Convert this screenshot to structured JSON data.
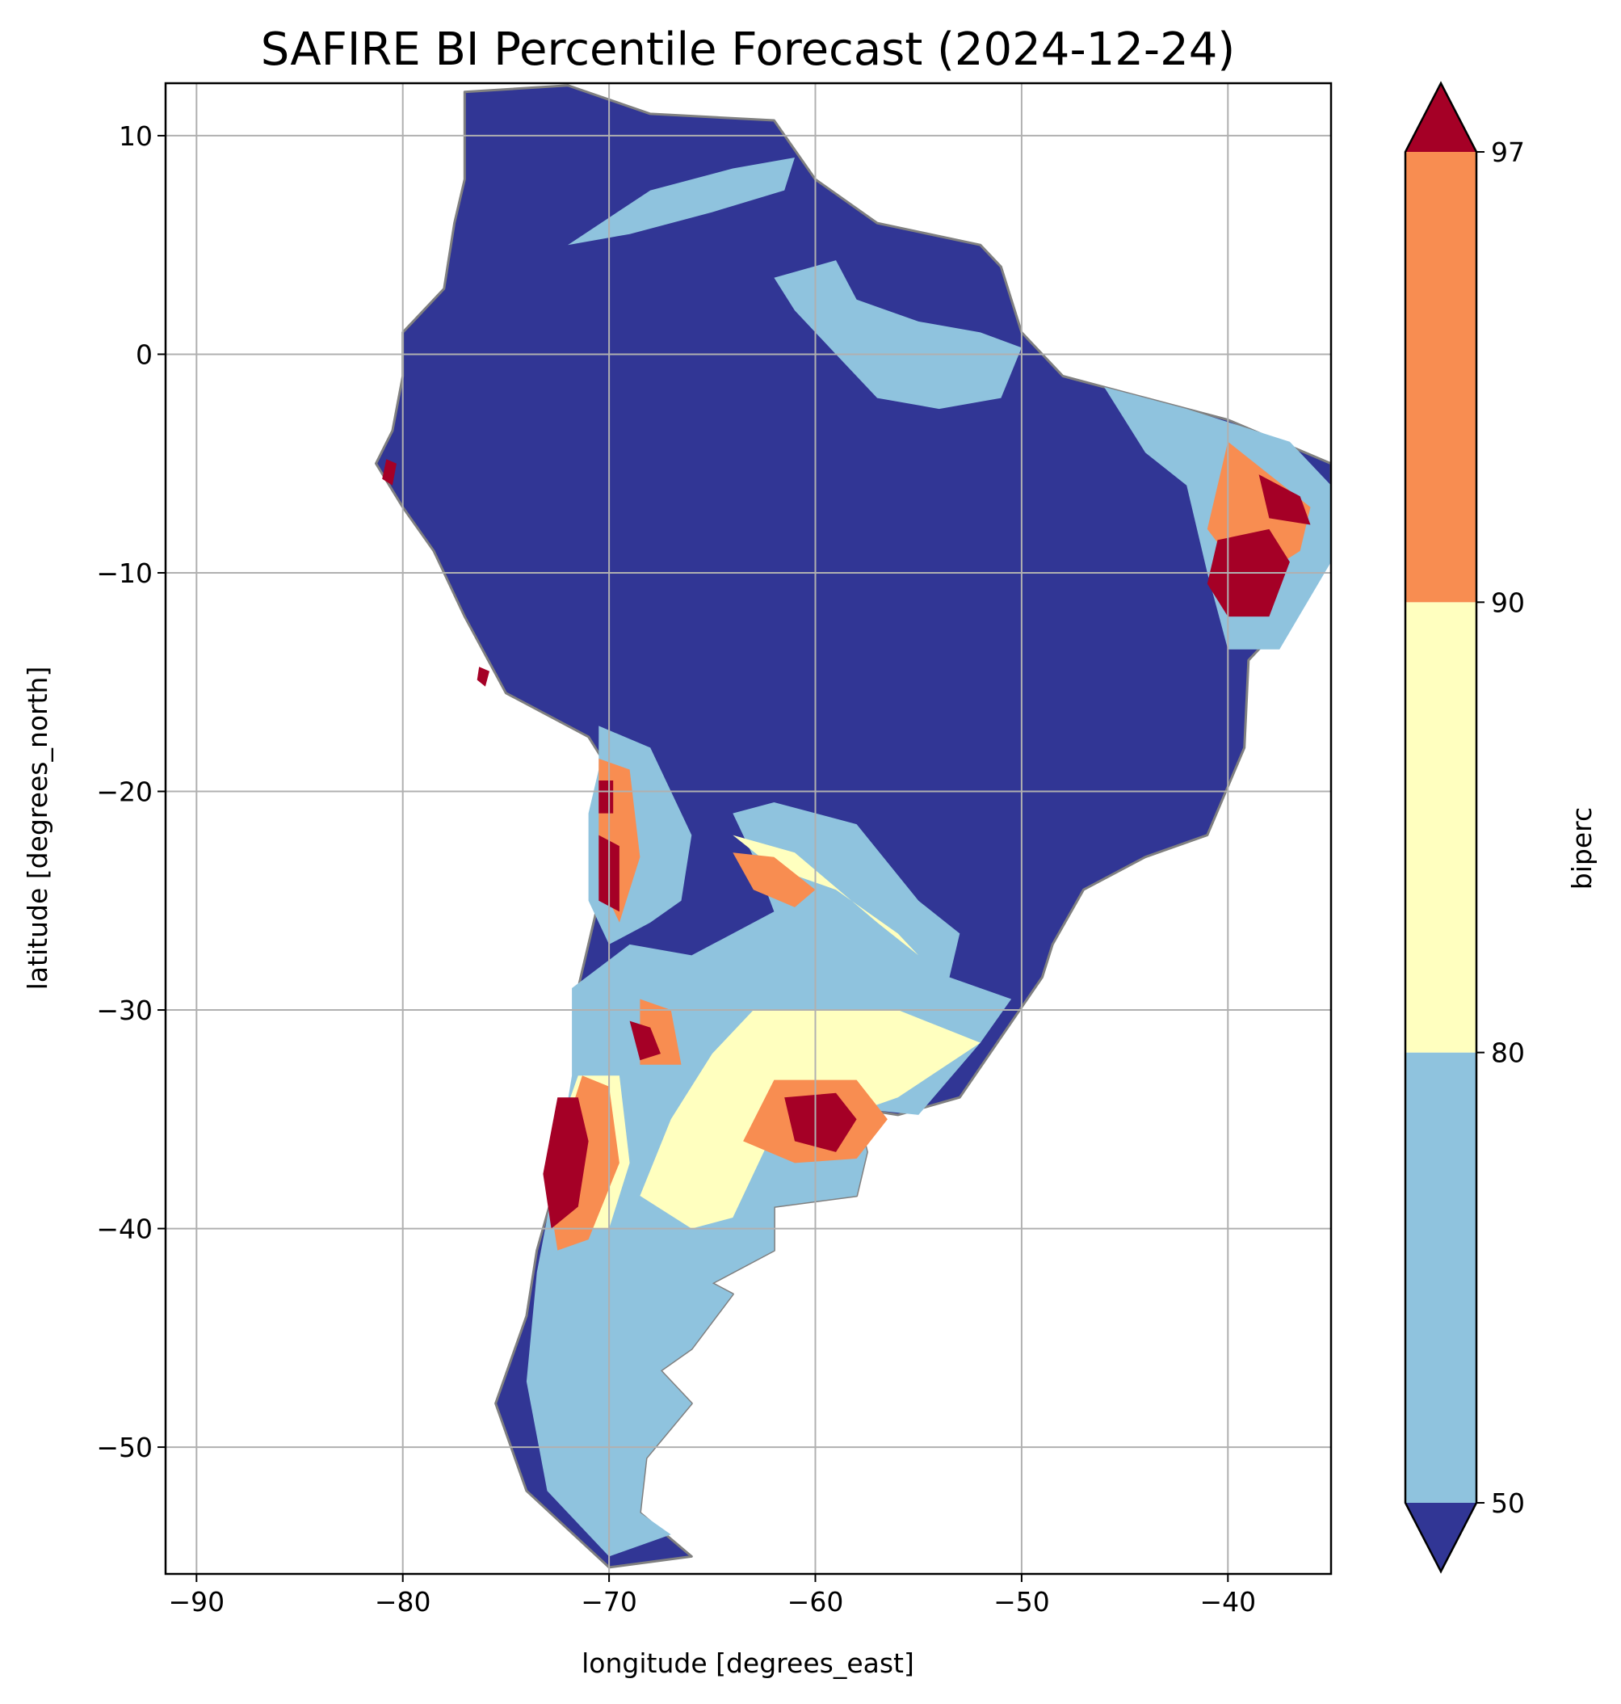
{
  "title": "SAFIRE BI Percentile Forecast (2024-12-24)",
  "xlabel": "longitude [degrees_east]",
  "ylabel": "latitude [degrees_north]",
  "x_ticks": [
    {
      "value": -90,
      "label": "−90"
    },
    {
      "value": -80,
      "label": "−80"
    },
    {
      "value": -70,
      "label": "−70"
    },
    {
      "value": -60,
      "label": "−60"
    },
    {
      "value": -50,
      "label": "−50"
    },
    {
      "value": -40,
      "label": "−40"
    }
  ],
  "y_ticks": [
    {
      "value": 10,
      "label": "10"
    },
    {
      "value": 0,
      "label": "0"
    },
    {
      "value": -10,
      "label": "−10"
    },
    {
      "value": -20,
      "label": "−20"
    },
    {
      "value": -30,
      "label": "−30"
    },
    {
      "value": -40,
      "label": "−40"
    },
    {
      "value": -50,
      "label": "−50"
    }
  ],
  "colorbar": {
    "label": "biperc",
    "ticks": [
      "50",
      "80",
      "90",
      "97"
    ],
    "under_color": "#313695",
    "over_color": "#a50026",
    "bands": [
      {
        "from": 50,
        "to": 80,
        "color": "#8fc3de"
      },
      {
        "from": 80,
        "to": 90,
        "color": "#ffffbf"
      },
      {
        "from": 90,
        "to": 97,
        "color": "#f88d51"
      }
    ]
  },
  "chart_data": {
    "type": "heatmap",
    "title": "SAFIRE BI Percentile Forecast (2024-12-24)",
    "xlabel": "longitude [degrees_east]",
    "ylabel": "latitude [degrees_north]",
    "xlim": [
      -91.5,
      -35
    ],
    "ylim": [
      -55.8,
      12.4
    ],
    "grid": true,
    "variable": "biperc",
    "levels": [
      50,
      80,
      90,
      97
    ],
    "colors": {
      "below_50": "#313695",
      "50_80": "#8fc3de",
      "80_90": "#ffffbf",
      "90_97": "#f88d51",
      "above_97": "#a50026"
    },
    "border_color": "#808080",
    "regions": [
      {
        "category": "below_50",
        "lonlat": [
          [
            -77,
            12
          ],
          [
            -72,
            12.3
          ],
          [
            -68,
            11
          ],
          [
            -62,
            10.7
          ],
          [
            -60,
            8
          ],
          [
            -57,
            6
          ],
          [
            -52,
            5
          ],
          [
            -51,
            4
          ],
          [
            -50,
            1
          ],
          [
            -48,
            -1
          ],
          [
            -44,
            -2
          ],
          [
            -40,
            -3
          ],
          [
            -35,
            -5
          ],
          [
            -35,
            -9
          ],
          [
            -37,
            -12
          ],
          [
            -39,
            -14
          ],
          [
            -39.2,
            -18
          ],
          [
            -41,
            -22
          ],
          [
            -44,
            -23
          ],
          [
            -47,
            -24.5
          ],
          [
            -48.5,
            -27
          ],
          [
            -49,
            -28.5
          ],
          [
            -53,
            -34
          ],
          [
            -56,
            -34.8
          ],
          [
            -58,
            -34.5
          ],
          [
            -57.5,
            -36.5
          ],
          [
            -58,
            -38.5
          ],
          [
            -62,
            -39
          ],
          [
            -62,
            -41
          ],
          [
            -65,
            -42.5
          ],
          [
            -64,
            -43
          ],
          [
            -66,
            -45.5
          ],
          [
            -67.5,
            -46.5
          ],
          [
            -66,
            -48
          ],
          [
            -68.2,
            -50.5
          ],
          [
            -68.5,
            -53
          ],
          [
            -66,
            -55
          ],
          [
            -70,
            -55.5
          ],
          [
            -74,
            -52
          ],
          [
            -75.5,
            -48
          ],
          [
            -74,
            -44
          ],
          [
            -73.5,
            -41
          ],
          [
            -72.3,
            -37
          ],
          [
            -71.5,
            -33
          ],
          [
            -71.5,
            -29
          ],
          [
            -70.5,
            -25
          ],
          [
            -70,
            -19
          ],
          [
            -71,
            -17.5
          ],
          [
            -75,
            -15.5
          ],
          [
            -77,
            -12
          ],
          [
            -78.5,
            -9
          ],
          [
            -80,
            -7
          ],
          [
            -81.3,
            -5
          ],
          [
            -80.5,
            -3.5
          ],
          [
            -80,
            -1
          ],
          [
            -80,
            1
          ],
          [
            -78,
            3
          ],
          [
            -77.5,
            6
          ],
          [
            -77,
            8
          ]
        ]
      },
      {
        "category": "50_80",
        "lonlat": [
          [
            -72,
            5
          ],
          [
            -68,
            7.5
          ],
          [
            -64,
            8.5
          ],
          [
            -61,
            9
          ],
          [
            -61.5,
            7.5
          ],
          [
            -65,
            6.5
          ],
          [
            -69,
            5.5
          ]
        ]
      },
      {
        "category": "50_80",
        "lonlat": [
          [
            -62,
            3.5
          ],
          [
            -59,
            4.3
          ],
          [
            -58,
            2.5
          ],
          [
            -55,
            1.5
          ],
          [
            -52,
            1
          ],
          [
            -50,
            0.3
          ],
          [
            -51,
            -2
          ],
          [
            -54,
            -2.5
          ],
          [
            -57,
            -2
          ],
          [
            -59,
            0
          ],
          [
            -61,
            2
          ]
        ]
      },
      {
        "category": "50_80",
        "lonlat": [
          [
            -46,
            -1.5
          ],
          [
            -42,
            -2.5
          ],
          [
            -37,
            -4
          ],
          [
            -35,
            -6
          ],
          [
            -35,
            -9.5
          ],
          [
            -37.5,
            -13.5
          ],
          [
            -40,
            -13.5
          ],
          [
            -41,
            -10
          ],
          [
            -42,
            -6
          ],
          [
            -44,
            -4.5
          ]
        ]
      },
      {
        "category": "50_80",
        "lonlat": [
          [
            -70.5,
            -17
          ],
          [
            -68,
            -18
          ],
          [
            -66,
            -22
          ],
          [
            -66.5,
            -25
          ],
          [
            -68,
            -26
          ],
          [
            -70,
            -27
          ],
          [
            -71,
            -25
          ],
          [
            -71,
            -21
          ],
          [
            -70.5,
            -19
          ]
        ]
      },
      {
        "category": "50_80",
        "lonlat": [
          [
            -64,
            -21
          ],
          [
            -62,
            -20.5
          ],
          [
            -58,
            -21.5
          ],
          [
            -55,
            -25
          ],
          [
            -53,
            -26.5
          ],
          [
            -53.5,
            -28.5
          ],
          [
            -50.5,
            -29.5
          ],
          [
            -52,
            -31.5
          ],
          [
            -55,
            -34.8
          ],
          [
            -58,
            -34.5
          ],
          [
            -57.5,
            -36.5
          ],
          [
            -58,
            -38.5
          ],
          [
            -62,
            -39
          ],
          [
            -62,
            -41
          ],
          [
            -65,
            -42.5
          ],
          [
            -64,
            -43
          ],
          [
            -66,
            -45.5
          ],
          [
            -67.5,
            -46.5
          ],
          [
            -66,
            -48
          ],
          [
            -68.2,
            -50.5
          ],
          [
            -68.5,
            -53
          ],
          [
            -67,
            -54
          ],
          [
            -70,
            -55
          ],
          [
            -73,
            -52
          ],
          [
            -74,
            -47
          ],
          [
            -73.5,
            -42
          ],
          [
            -72.5,
            -37
          ],
          [
            -71.8,
            -33
          ],
          [
            -71.8,
            -29
          ],
          [
            -69,
            -27
          ],
          [
            -66,
            -27.5
          ],
          [
            -62,
            -25.5
          ],
          [
            -63,
            -23
          ]
        ]
      },
      {
        "category": "80_90",
        "lonlat": [
          [
            -64,
            -22
          ],
          [
            -61,
            -22.8
          ],
          [
            -57,
            -26
          ],
          [
            -55,
            -27.5
          ],
          [
            -56,
            -26.5
          ],
          [
            -59,
            -24.5
          ],
          [
            -62,
            -23.5
          ]
        ]
      },
      {
        "category": "80_90",
        "lonlat": [
          [
            -63,
            -30
          ],
          [
            -56,
            -30
          ],
          [
            -52,
            -31.5
          ],
          [
            -56,
            -34
          ],
          [
            -59,
            -35
          ],
          [
            -62,
            -35.5
          ],
          [
            -64,
            -39.5
          ],
          [
            -66,
            -40
          ],
          [
            -68.5,
            -38.5
          ],
          [
            -67,
            -35
          ],
          [
            -65,
            -32
          ]
        ]
      },
      {
        "category": "80_90",
        "lonlat": [
          [
            -71.5,
            -33
          ],
          [
            -69.5,
            -33
          ],
          [
            -69,
            -37
          ],
          [
            -70,
            -40
          ],
          [
            -72,
            -40
          ],
          [
            -73,
            -37
          ]
        ]
      },
      {
        "category": "90_97",
        "lonlat": [
          [
            -70.5,
            -18.5
          ],
          [
            -69,
            -19
          ],
          [
            -68.5,
            -23
          ],
          [
            -69.5,
            -26
          ],
          [
            -70.5,
            -24
          ],
          [
            -70.5,
            -21
          ]
        ]
      },
      {
        "category": "90_97",
        "lonlat": [
          [
            -64,
            -22.8
          ],
          [
            -62,
            -23
          ],
          [
            -60,
            -24.5
          ],
          [
            -61,
            -25.3
          ],
          [
            -63,
            -24.5
          ]
        ]
      },
      {
        "category": "90_97",
        "lonlat": [
          [
            -71.3,
            -33
          ],
          [
            -70,
            -33.5
          ],
          [
            -69.5,
            -37
          ],
          [
            -71,
            -40.5
          ],
          [
            -72.5,
            -41
          ],
          [
            -73,
            -38
          ]
        ]
      },
      {
        "category": "90_97",
        "lonlat": [
          [
            -62,
            -33.2
          ],
          [
            -58,
            -33.2
          ],
          [
            -56.5,
            -35
          ],
          [
            -58,
            -36.8
          ],
          [
            -61,
            -37
          ],
          [
            -63.5,
            -36
          ]
        ]
      },
      {
        "category": "90_97",
        "lonlat": [
          [
            -40,
            -4
          ],
          [
            -38,
            -5.5
          ],
          [
            -36,
            -7
          ],
          [
            -36.5,
            -9
          ],
          [
            -39,
            -10.5
          ],
          [
            -41,
            -8
          ]
        ]
      },
      {
        "category": "90_97",
        "lonlat": [
          [
            -68.5,
            -29.5
          ],
          [
            -67,
            -30
          ],
          [
            -66.5,
            -32.5
          ],
          [
            -68.5,
            -32.5
          ]
        ]
      },
      {
        "category": "above_97",
        "lonlat": [
          [
            -40.5,
            -8.5
          ],
          [
            -38,
            -8
          ],
          [
            -37,
            -9.5
          ],
          [
            -38,
            -12
          ],
          [
            -40,
            -12
          ],
          [
            -41,
            -10.5
          ]
        ]
      },
      {
        "category": "above_97",
        "lonlat": [
          [
            -38.5,
            -5.5
          ],
          [
            -36.5,
            -6.5
          ],
          [
            -36,
            -7.8
          ],
          [
            -38,
            -7.5
          ]
        ]
      },
      {
        "category": "above_97",
        "lonlat": [
          [
            -70.5,
            -22
          ],
          [
            -69.5,
            -22.5
          ],
          [
            -69.5,
            -25.5
          ],
          [
            -70.5,
            -25
          ]
        ]
      },
      {
        "category": "above_97",
        "lonlat": [
          [
            -70.5,
            -19.5
          ],
          [
            -69.8,
            -19.5
          ],
          [
            -69.8,
            -21
          ],
          [
            -70.5,
            -21
          ]
        ]
      },
      {
        "category": "above_97",
        "lonlat": [
          [
            -72.5,
            -34
          ],
          [
            -71.5,
            -34
          ],
          [
            -71,
            -36
          ],
          [
            -71.5,
            -39
          ],
          [
            -72.8,
            -40
          ],
          [
            -73.2,
            -37.5
          ]
        ]
      },
      {
        "category": "above_97",
        "lonlat": [
          [
            -61.5,
            -34
          ],
          [
            -59,
            -33.8
          ],
          [
            -58,
            -35
          ],
          [
            -59,
            -36.5
          ],
          [
            -61,
            -36
          ]
        ]
      },
      {
        "category": "above_97",
        "lonlat": [
          [
            -69,
            -30.5
          ],
          [
            -68,
            -30.8
          ],
          [
            -67.5,
            -32
          ],
          [
            -68.5,
            -32.3
          ]
        ]
      },
      {
        "category": "above_97",
        "lonlat": [
          [
            -80.8,
            -4.8
          ],
          [
            -80.3,
            -5
          ],
          [
            -80.5,
            -6
          ],
          [
            -81,
            -5.7
          ]
        ]
      },
      {
        "category": "above_97",
        "lonlat": [
          [
            -76.3,
            -14.3
          ],
          [
            -75.8,
            -14.5
          ],
          [
            -76,
            -15.2
          ],
          [
            -76.4,
            -14.9
          ]
        ]
      }
    ]
  }
}
